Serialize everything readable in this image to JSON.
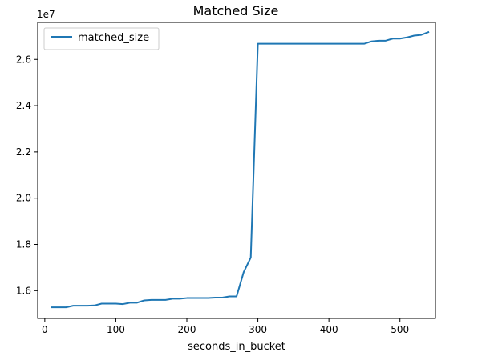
{
  "chart_data": {
    "type": "line",
    "title": "Matched Size",
    "xlabel": "seconds_in_bucket",
    "ylabel": "",
    "y_offset_label": "1e7",
    "y_scale": 10000000,
    "xlim": [
      -10,
      550
    ],
    "ylim": [
      14800000,
      27600000
    ],
    "x_ticks": [
      0,
      100,
      200,
      300,
      400,
      500
    ],
    "x_tick_labels": [
      "0",
      "100",
      "200",
      "300",
      "400",
      "500"
    ],
    "y_ticks": [
      16000000,
      18000000,
      20000000,
      22000000,
      24000000,
      26000000
    ],
    "y_tick_labels": [
      "1.6",
      "1.8",
      "2.0",
      "2.2",
      "2.4",
      "2.6"
    ],
    "grid": false,
    "legend_position": "top-left",
    "series": [
      {
        "name": "matched_size",
        "color": "#1f77b4",
        "x": [
          10,
          20,
          30,
          40,
          50,
          60,
          70,
          80,
          90,
          100,
          110,
          120,
          130,
          140,
          150,
          160,
          170,
          180,
          190,
          200,
          210,
          220,
          230,
          240,
          250,
          260,
          270,
          280,
          290,
          300,
          310,
          320,
          330,
          340,
          350,
          360,
          370,
          380,
          390,
          400,
          410,
          420,
          430,
          440,
          450,
          460,
          470,
          480,
          490,
          500,
          510,
          520,
          530,
          540
        ],
        "y": [
          15280000,
          15280000,
          15280000,
          15350000,
          15350000,
          15350000,
          15360000,
          15440000,
          15440000,
          15440000,
          15420000,
          15480000,
          15480000,
          15580000,
          15600000,
          15600000,
          15600000,
          15650000,
          15650000,
          15680000,
          15680000,
          15680000,
          15680000,
          15700000,
          15700000,
          15750000,
          15750000,
          16800000,
          17430000,
          26680000,
          26680000,
          26680000,
          26680000,
          26680000,
          26680000,
          26680000,
          26680000,
          26680000,
          26680000,
          26680000,
          26680000,
          26680000,
          26680000,
          26680000,
          26680000,
          26780000,
          26810000,
          26810000,
          26900000,
          26900000,
          26950000,
          27030000,
          27060000,
          27180000
        ]
      }
    ]
  }
}
